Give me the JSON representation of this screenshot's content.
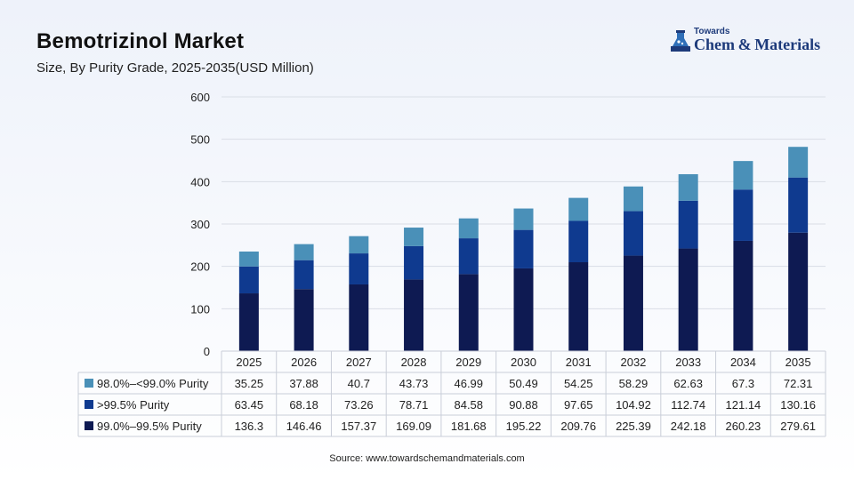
{
  "header": {
    "title": "Bemotrizinol Market",
    "subtitle": "Size, By Purity Grade, 2025-2035(USD Million)"
  },
  "logo": {
    "small_text": "Towards",
    "big_text": "Chem & Materials"
  },
  "source": "Source: www.towardschemandmaterials.com",
  "colors": {
    "dark_navy": "#0e1a52",
    "royal_blue": "#0f3a8f",
    "light_blue": "#4a90b8",
    "grid": "#d9dde6",
    "table_border": "#c9ced8"
  },
  "chart_data": {
    "type": "bar",
    "stacked": true,
    "categories": [
      "2025",
      "2026",
      "2027",
      "2028",
      "2029",
      "2030",
      "2031",
      "2032",
      "2033",
      "2034",
      "2035"
    ],
    "ylim": [
      0,
      600
    ],
    "yticks": [
      "0",
      "100",
      "200",
      "300",
      "400",
      "500",
      "600"
    ],
    "grid": true,
    "legend": "data-table",
    "series": [
      {
        "name": "99.0%–99.5% Purity",
        "color": "#0e1a52",
        "values": [
          136.3,
          146.46,
          157.37,
          169.09,
          181.68,
          195.22,
          209.76,
          225.39,
          242.18,
          260.23,
          279.61
        ],
        "labels": [
          "136.3",
          "146.46",
          "157.37",
          "169.09",
          "181.68",
          "195.22",
          "209.76",
          "225.39",
          "242.18",
          "260.23",
          "279.61"
        ]
      },
      {
        "name": ">99.5% Purity",
        "color": "#0f3a8f",
        "values": [
          63.45,
          68.18,
          73.26,
          78.71,
          84.58,
          90.88,
          97.65,
          104.92,
          112.74,
          121.14,
          130.16
        ],
        "labels": [
          "63.45",
          "68.18",
          "73.26",
          "78.71",
          "84.58",
          "90.88",
          "97.65",
          "104.92",
          "112.74",
          "121.14",
          "130.16"
        ]
      },
      {
        "name": "98.0%–<99.0% Purity",
        "color": "#4a90b8",
        "values": [
          35.25,
          37.88,
          40.7,
          43.73,
          46.99,
          50.49,
          54.25,
          58.29,
          62.63,
          67.3,
          72.31
        ],
        "labels": [
          "35.25",
          "37.88",
          "40.7",
          "43.73",
          "46.99",
          "50.49",
          "54.25",
          "58.29",
          "62.63",
          "67.3",
          "72.31"
        ]
      }
    ],
    "table_row_order": [
      2,
      1,
      0
    ]
  }
}
